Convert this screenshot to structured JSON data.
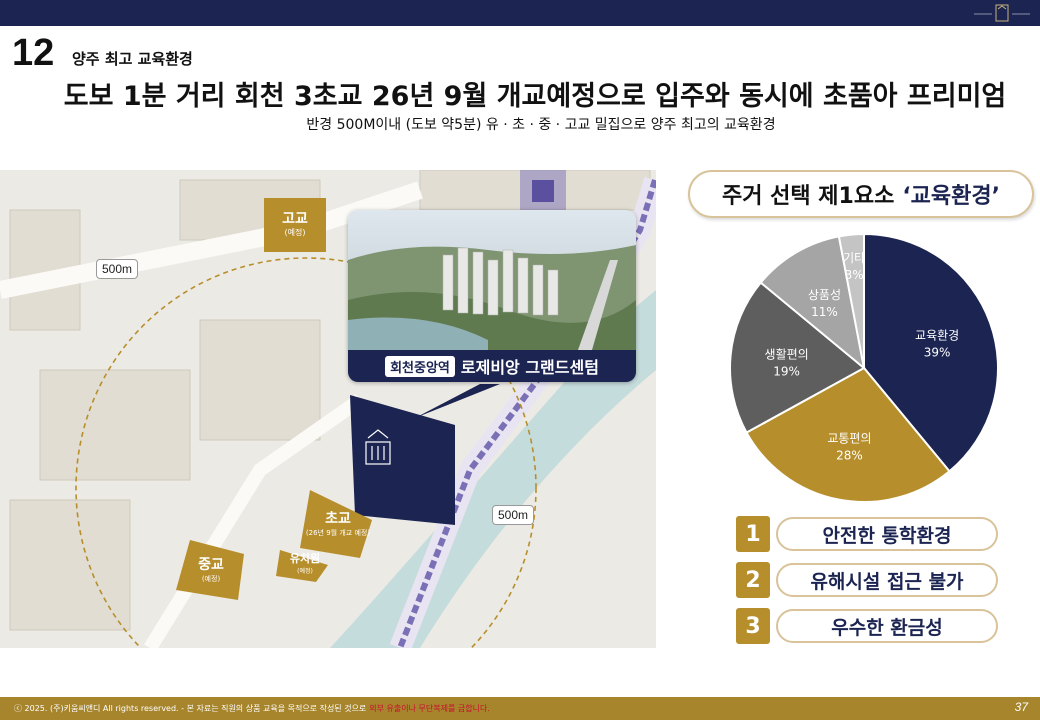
{
  "header": {
    "section_number": "12",
    "subtitle": "양주 최고 교육환경"
  },
  "headline": "도보 1분 거리 회천 3초교 26년 9월 개교예정으로 입주와 동시에 초품아 프리미엄",
  "subline": "반경 500M이내 (도보 약5분) 유 · 초 · 중 · 고교 밀집으로 양주 최고의 교육환경",
  "map": {
    "distance_top": "500m",
    "distance_right": "500m",
    "high_school": {
      "name": "고교",
      "note": "(예정)"
    },
    "middle_school": {
      "name": "중교",
      "note": "(예정)"
    },
    "elementary_school": {
      "name": "초교",
      "note": "(26년 9월 개교 예정)"
    },
    "kindergarten": {
      "name": "유치원",
      "note": "(예정)"
    },
    "photo_badge": "회천중앙역",
    "photo_name": "로제비앙 그랜드센텀"
  },
  "panel": {
    "title_main": "주거 선택 제1요소",
    "title_accent": "‘교육환경’"
  },
  "chart_data": {
    "type": "pie",
    "categories": [
      "교육환경",
      "교통편의",
      "생활편의",
      "상품성",
      "기타"
    ],
    "values": [
      39,
      28,
      19,
      11,
      3
    ],
    "labels": [
      "39%",
      "28%",
      "19%",
      "11%",
      "3%"
    ],
    "colors": [
      "#1c2452",
      "#b78e2c",
      "#5e5e5e",
      "#a5a5a5",
      "#c4c4c4"
    ]
  },
  "features": [
    {
      "num": "1",
      "label": "안전한 통학환경"
    },
    {
      "num": "2",
      "label": "유해시설 접근 불가"
    },
    {
      "num": "3",
      "label": "우수한 환금성"
    }
  ],
  "footer": {
    "copyright": "ⓒ 2025. (주)키움씨앤디 All rights reserved. - 본 자료는 직원의 상품 교육을 목적으로 작성된 것으로",
    "warning": "외부 유출이나 무단복제를 금합니다.",
    "page": "37"
  }
}
